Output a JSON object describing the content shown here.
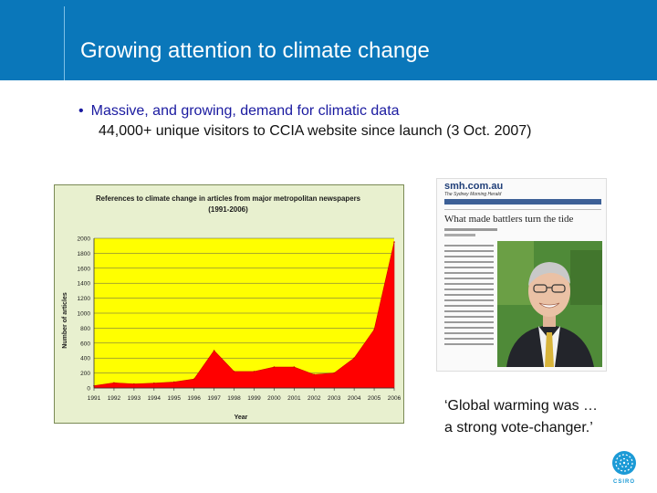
{
  "slide": {
    "title": "Growing attention to climate change",
    "bullet": "Massive, and growing, demand for climatic data",
    "subline": "44,000+ unique visitors to CCIA website since launch (3 Oct. 2007)",
    "quote_line1": "‘Global warming was …",
    "quote_line2": "a strong vote-changer.’"
  },
  "article": {
    "site": "smh.com.au",
    "paper": "The Sydney Morning Herald",
    "headline": "What made battlers turn the tide"
  },
  "logo": {
    "text": "CSIRO"
  },
  "colors": {
    "title_bar": "#0a77ba",
    "chart_bg": "#e8f0cf",
    "plot_bg": "#ffff00",
    "area_fill": "#ff0000",
    "bullet_text": "#1a1aa0"
  },
  "chart_data": {
    "type": "area",
    "title": "References to climate change in articles from major metropolitan newspapers",
    "subtitle": "(1991-2006)",
    "xlabel": "Year",
    "ylabel": "Number of articles",
    "xlim": [
      1991,
      2006
    ],
    "ylim": [
      0,
      2000
    ],
    "x_ticks": [
      1991,
      1992,
      1993,
      1994,
      1995,
      1996,
      1997,
      1998,
      1999,
      2000,
      2001,
      2002,
      2003,
      2004,
      2005,
      2006
    ],
    "x_tick_labels": [
      "1991",
      "1992",
      "1993",
      "1994",
      "1995",
      "1996",
      "1997",
      "1998",
      "1999",
      "2000",
      "2001",
      "2002",
      "2003",
      "2004",
      "2005",
      "2006"
    ],
    "y_ticks": [
      0,
      200,
      400,
      600,
      800,
      1000,
      1200,
      1400,
      1600,
      1800,
      2000
    ],
    "grid": true,
    "series": [
      {
        "x": [
          1991,
          1992,
          1993,
          1994,
          1995,
          1996,
          1997,
          1998,
          1999,
          2000,
          2001,
          2002,
          2003,
          2004,
          2005,
          2006
        ],
        "values": [
          30,
          70,
          55,
          65,
          80,
          120,
          500,
          220,
          220,
          280,
          280,
          180,
          200,
          400,
          780,
          1950
        ]
      }
    ]
  }
}
